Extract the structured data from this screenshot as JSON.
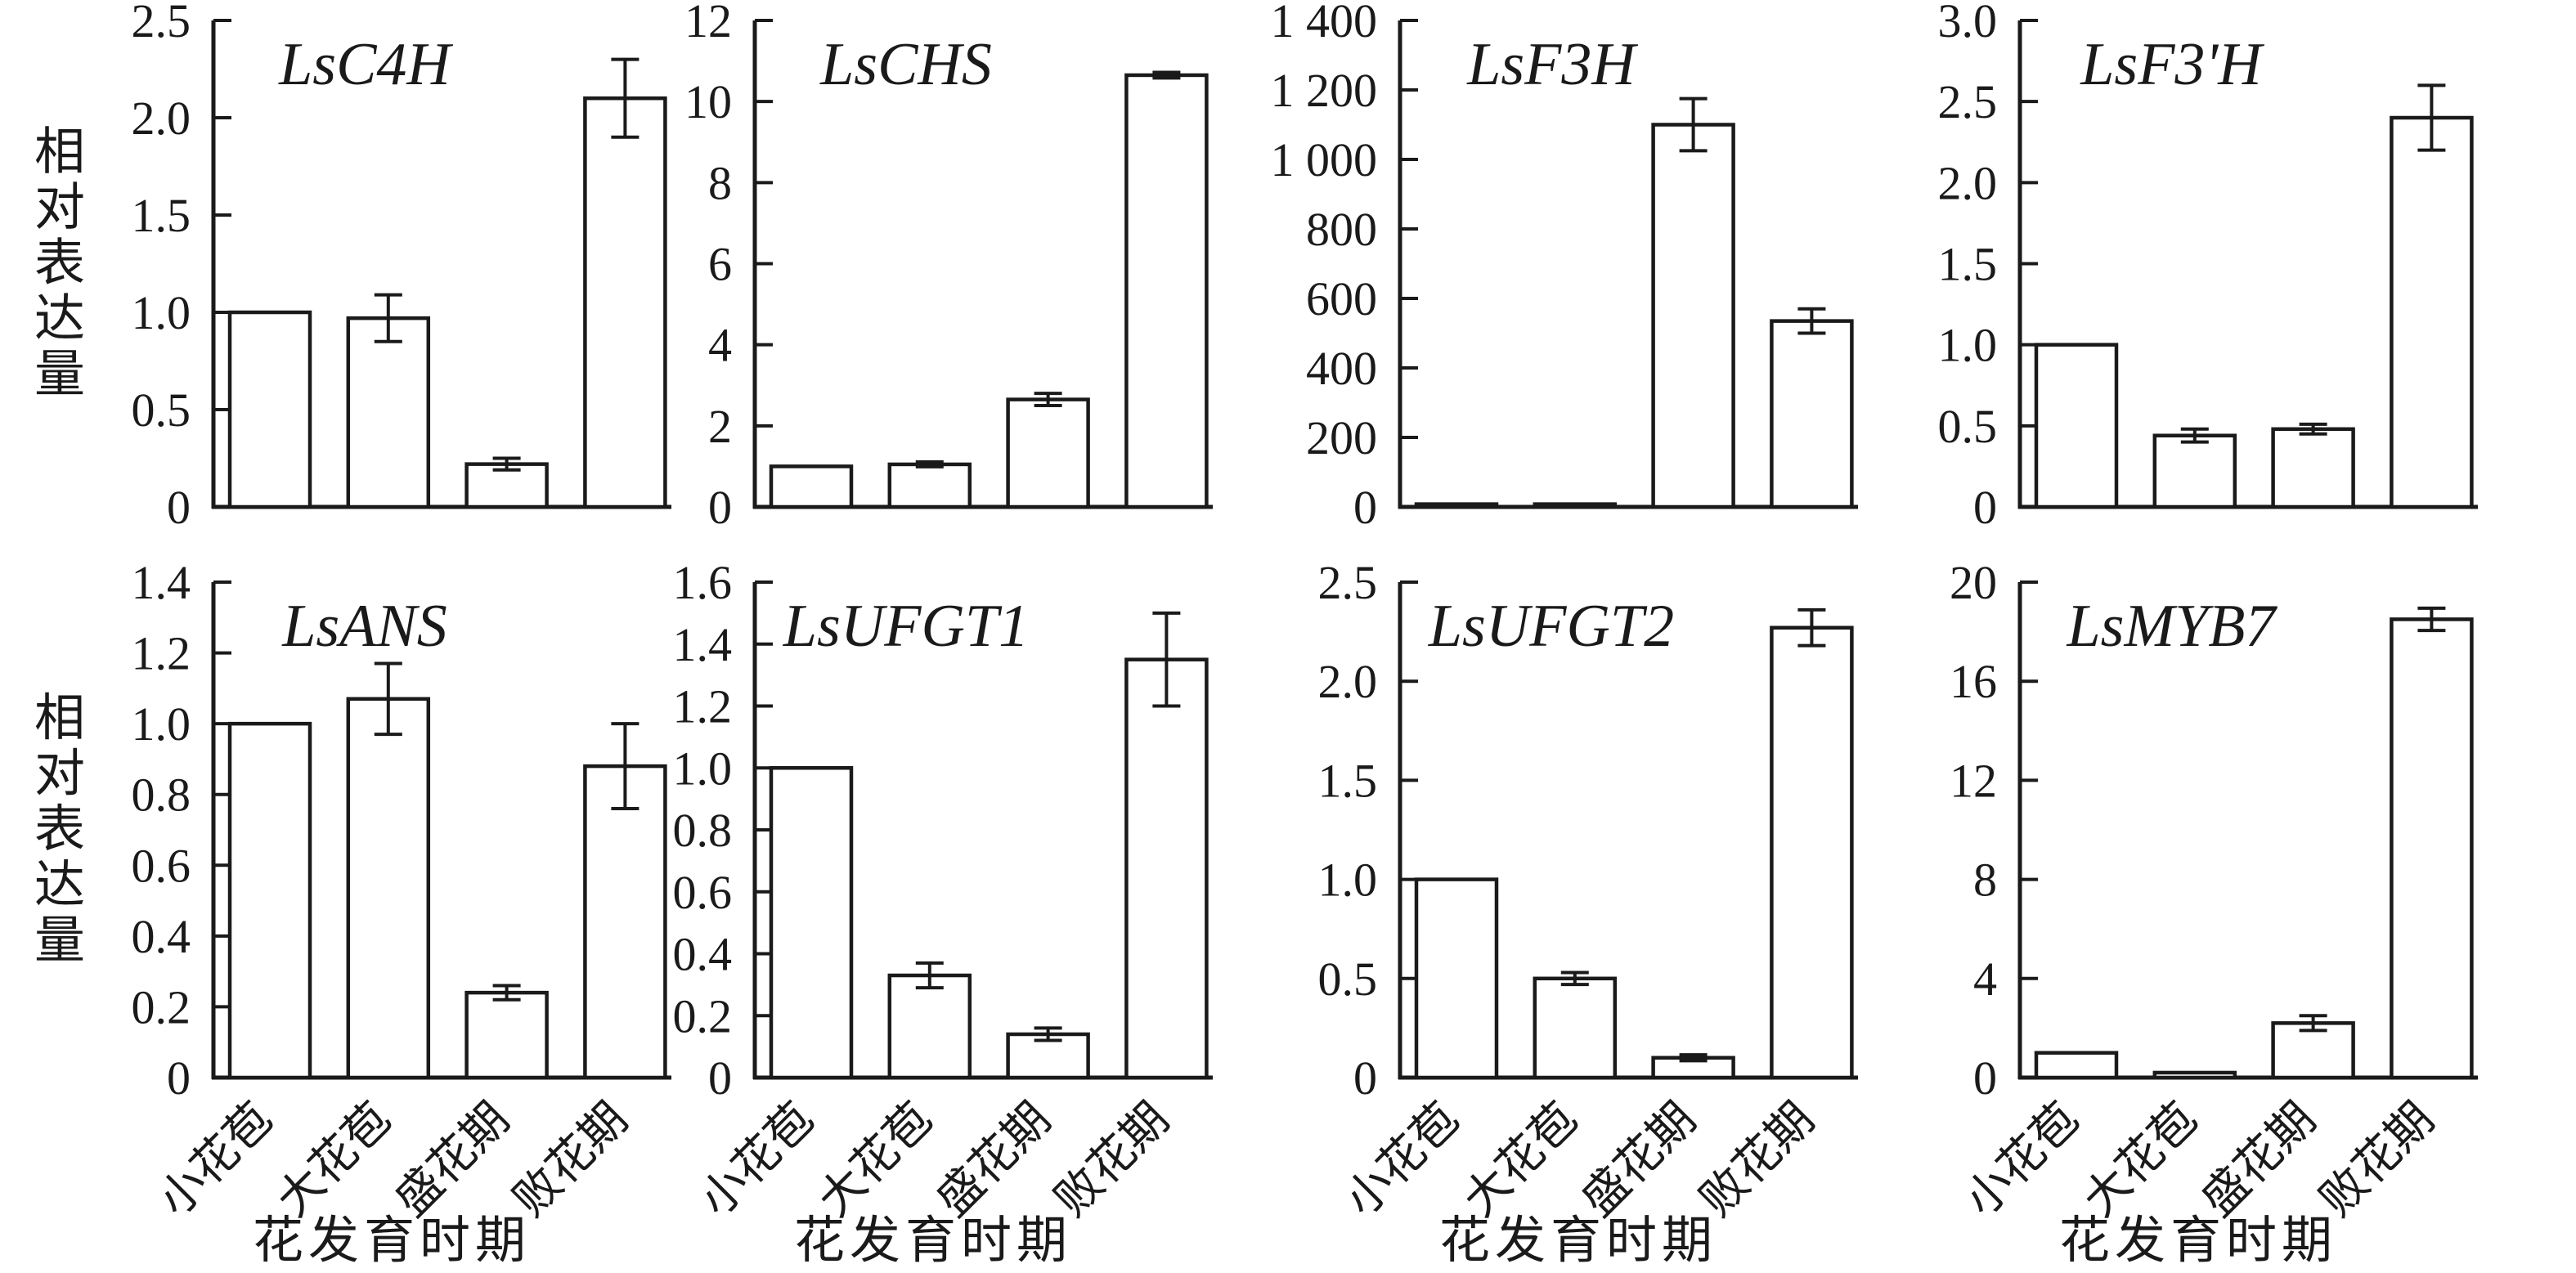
{
  "figure": {
    "y_axis_label": "相对表达量",
    "x_axis_label": "花发育时期",
    "categories": [
      "小花苞",
      "大花苞",
      "盛花期",
      "败花期"
    ]
  },
  "chart_data": [
    {
      "type": "bar",
      "title": "LsC4H",
      "categories": [
        "小花苞",
        "大花苞",
        "盛花期",
        "败花期"
      ],
      "values": [
        1.0,
        0.97,
        0.22,
        2.1
      ],
      "errors": [
        0,
        0.12,
        0.03,
        0.2
      ],
      "ylabel": "相对表达量",
      "xlabel": "花发育时期",
      "ylim": [
        0,
        2.5
      ],
      "ytick_vals": [
        0,
        0.5,
        1.0,
        1.5,
        2.0,
        2.5
      ],
      "ytick_labels": [
        "0",
        "0.5",
        "1.0",
        "1.5",
        "2.0",
        "2.5"
      ]
    },
    {
      "type": "bar",
      "title": "LsCHS",
      "categories": [
        "小花苞",
        "大花苞",
        "盛花期",
        "败花期"
      ],
      "values": [
        1.0,
        1.05,
        2.65,
        10.65
      ],
      "errors": [
        0,
        0.06,
        0.15,
        0.07
      ],
      "ylabel": "相对表达量",
      "xlabel": "花发育时期",
      "ylim": [
        0,
        12
      ],
      "ytick_vals": [
        0,
        2,
        4,
        6,
        8,
        10,
        12
      ],
      "ytick_labels": [
        "0",
        "2",
        "4",
        "6",
        "8",
        "10",
        "12"
      ]
    },
    {
      "type": "bar",
      "title": "LsF3H",
      "categories": [
        "小花苞",
        "大花苞",
        "盛花期",
        "败花期"
      ],
      "values": [
        8,
        8,
        1100,
        535
      ],
      "errors": [
        0,
        0,
        75,
        35
      ],
      "ylabel": "相对表达量",
      "xlabel": "花发育时期",
      "ylim": [
        0,
        1400
      ],
      "ytick_vals": [
        0,
        200,
        400,
        600,
        800,
        1000,
        1200,
        1400
      ],
      "ytick_labels": [
        "0",
        "200",
        "400",
        "600",
        "800",
        "1 000",
        "1 200",
        "1 400"
      ]
    },
    {
      "type": "bar",
      "title": "LsF3'H",
      "categories": [
        "小花苞",
        "大花苞",
        "盛花期",
        "败花期"
      ],
      "values": [
        1.0,
        0.44,
        0.48,
        2.4
      ],
      "errors": [
        0,
        0.04,
        0.03,
        0.2
      ],
      "ylabel": "相对表达量",
      "xlabel": "花发育时期",
      "ylim": [
        0,
        3.0
      ],
      "ytick_vals": [
        0,
        0.5,
        1.0,
        1.5,
        2.0,
        2.5,
        3.0
      ],
      "ytick_labels": [
        "0",
        "0.5",
        "1.0",
        "1.5",
        "2.0",
        "2.5",
        "3.0"
      ]
    },
    {
      "type": "bar",
      "title": "LsANS",
      "categories": [
        "小花苞",
        "大花苞",
        "盛花期",
        "败花期"
      ],
      "values": [
        1.0,
        1.07,
        0.24,
        0.88
      ],
      "errors": [
        0,
        0.1,
        0.02,
        0.12
      ],
      "ylabel": "相对表达量",
      "xlabel": "花发育时期",
      "ylim": [
        0,
        1.4
      ],
      "ytick_vals": [
        0,
        0.2,
        0.4,
        0.6,
        0.8,
        1.0,
        1.2,
        1.4
      ],
      "ytick_labels": [
        "0",
        "0.2",
        "0.4",
        "0.6",
        "0.8",
        "1.0",
        "1.2",
        "1.4"
      ]
    },
    {
      "type": "bar",
      "title": "LsUFGT1",
      "categories": [
        "小花苞",
        "大花苞",
        "盛花期",
        "败花期"
      ],
      "values": [
        1.0,
        0.33,
        0.14,
        1.35
      ],
      "errors": [
        0,
        0.04,
        0.02,
        0.15
      ],
      "ylabel": "相对表达量",
      "xlabel": "花发育时期",
      "ylim": [
        0,
        1.6
      ],
      "ytick_vals": [
        0,
        0.2,
        0.4,
        0.6,
        0.8,
        1.0,
        1.2,
        1.4,
        1.6
      ],
      "ytick_labels": [
        "0",
        "0.2",
        "0.4",
        "0.6",
        "0.8",
        "1.0",
        "1.2",
        "1.4",
        "1.6"
      ]
    },
    {
      "type": "bar",
      "title": "LsUFGT2",
      "categories": [
        "小花苞",
        "大花苞",
        "盛花期",
        "败花期"
      ],
      "values": [
        1.0,
        0.5,
        0.1,
        2.27
      ],
      "errors": [
        0,
        0.03,
        0.015,
        0.09
      ],
      "ylabel": "相对表达量",
      "xlabel": "花发育时期",
      "ylim": [
        0,
        2.5
      ],
      "ytick_vals": [
        0,
        0.5,
        1.0,
        1.5,
        2.0,
        2.5
      ],
      "ytick_labels": [
        "0",
        "0.5",
        "1.0",
        "1.5",
        "2.0",
        "2.5"
      ]
    },
    {
      "type": "bar",
      "title": "LsMYB7",
      "categories": [
        "小花苞",
        "大花苞",
        "盛花期",
        "败花期"
      ],
      "values": [
        1.0,
        0.2,
        2.2,
        18.5
      ],
      "errors": [
        0,
        0,
        0.3,
        0.45
      ],
      "ylabel": "相对表达量",
      "xlabel": "花发育时期",
      "ylim": [
        0,
        20
      ],
      "ytick_vals": [
        0,
        4,
        8,
        12,
        16,
        20
      ],
      "ytick_labels": [
        "0",
        "4",
        "8",
        "12",
        "16",
        "20"
      ]
    }
  ]
}
